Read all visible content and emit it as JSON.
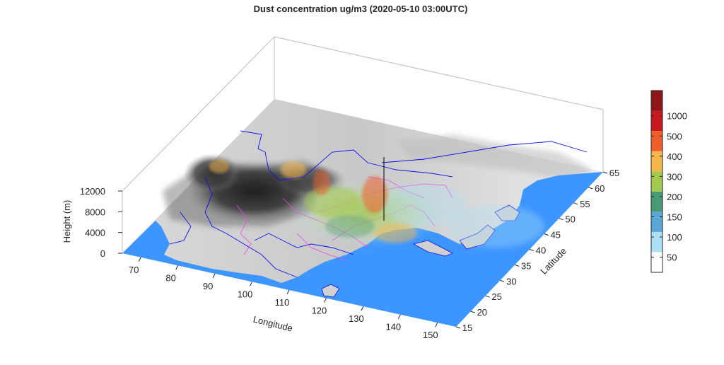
{
  "chart_data": {
    "type": "surface3d",
    "title": "Dust concentration ug/m3 (2020-05-10 03:00UTC)",
    "xlabel": "Longitude",
    "ylabel": "Latitude",
    "zlabel": "Height (m)",
    "x_ticks": [
      "70",
      "80",
      "90",
      "100",
      "110",
      "120",
      "130",
      "140",
      "150"
    ],
    "y_ticks": [
      "15",
      "20",
      "25",
      "30",
      "35",
      "40",
      "45",
      "50",
      "55",
      "60",
      "65"
    ],
    "z_ticks": [
      "0",
      "4000",
      "8000",
      "12000"
    ],
    "xlim": [
      65,
      155
    ],
    "ylim": [
      15,
      65
    ],
    "zlim": [
      0,
      12000
    ],
    "colorbar": {
      "levels": [
        "50",
        "100",
        "150",
        "200",
        "300",
        "400",
        "500",
        "1000"
      ],
      "colors": [
        "#ffffff",
        "#aee0f5",
        "#5aa6d6",
        "#479a73",
        "#a3c94d",
        "#f4b54a",
        "#ef5e2a",
        "#c7191f",
        "#8e161a"
      ]
    },
    "colors": {
      "ocean": "#3d96ff",
      "country_border": "#1010ee",
      "province_border": "#ee44ee"
    }
  }
}
